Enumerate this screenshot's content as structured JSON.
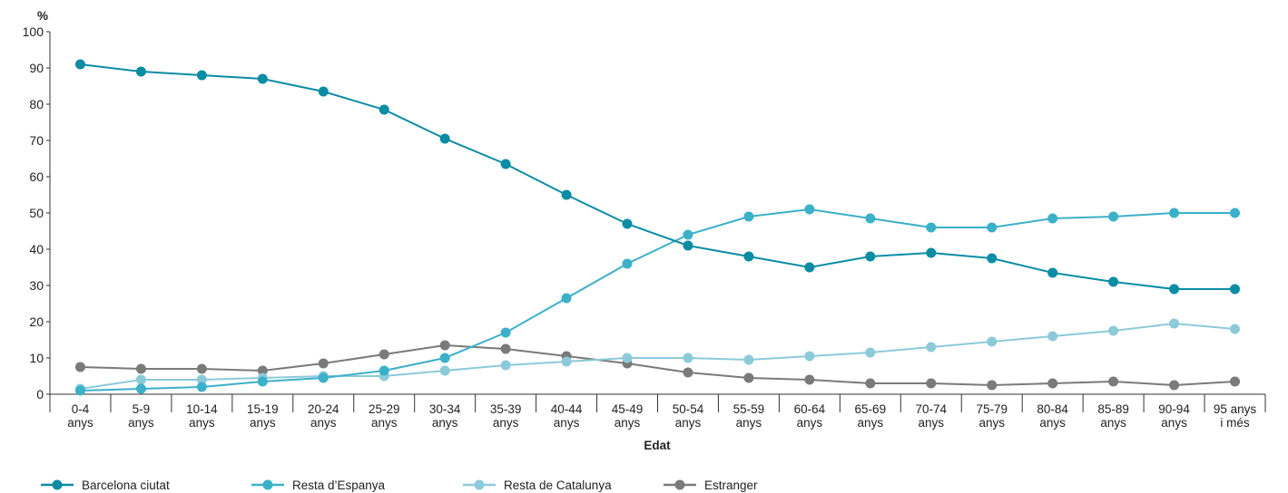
{
  "chart_data": {
    "type": "line",
    "title": "",
    "ylabel": "%",
    "xlabel": "Edat",
    "ylim": [
      0,
      100
    ],
    "yticks": [
      0,
      10,
      20,
      30,
      40,
      50,
      60,
      70,
      80,
      90,
      100
    ],
    "categories": [
      [
        "0-4",
        "anys"
      ],
      [
        "5-9",
        "anys"
      ],
      [
        "10-14",
        "anys"
      ],
      [
        "15-19",
        "anys"
      ],
      [
        "20-24",
        "anys"
      ],
      [
        "25-29",
        "anys"
      ],
      [
        "30-34",
        "anys"
      ],
      [
        "35-39",
        "anys"
      ],
      [
        "40-44",
        "anys"
      ],
      [
        "45-49",
        "anys"
      ],
      [
        "50-54",
        "anys"
      ],
      [
        "55-59",
        "anys"
      ],
      [
        "60-64",
        "anys"
      ],
      [
        "65-69",
        "anys"
      ],
      [
        "70-74",
        "anys"
      ],
      [
        "75-79",
        "anys"
      ],
      [
        "80-84",
        "anys"
      ],
      [
        "85-89",
        "anys"
      ],
      [
        "90-94",
        "anys"
      ],
      [
        "95 anys",
        "i més"
      ]
    ],
    "legend_position": "bottom",
    "series": [
      {
        "name": "Barcelona ciutat",
        "color": "#0a8ca5",
        "values": [
          91,
          89,
          88,
          87,
          83.5,
          78.5,
          70.5,
          63.5,
          55,
          47,
          41,
          38,
          35,
          38,
          39,
          37.5,
          33.5,
          31,
          29,
          29
        ]
      },
      {
        "name": "Resta d’Espanya",
        "color": "#3bb0c9",
        "values": [
          1,
          1.5,
          2,
          3.5,
          4.5,
          6.5,
          10,
          17,
          26.5,
          36,
          44,
          49,
          51,
          48.5,
          46,
          46,
          48.5,
          49,
          50,
          50
        ]
      },
      {
        "name": "Resta de Catalunya",
        "color": "#8ccad9",
        "values": [
          1.5,
          4,
          4,
          4.5,
          5,
          5,
          6.5,
          8,
          9,
          10,
          10,
          9.5,
          10.5,
          11.5,
          13,
          14.5,
          16,
          17.5,
          19.5,
          18
        ]
      },
      {
        "name": "Estranger",
        "color": "#7a7a7a",
        "values": [
          7.5,
          7,
          7,
          6.5,
          8.5,
          11,
          13.5,
          12.5,
          10.5,
          8.5,
          6,
          4.5,
          4,
          3,
          3,
          2.5,
          3,
          3.5,
          2.5,
          3.5
        ]
      }
    ]
  }
}
